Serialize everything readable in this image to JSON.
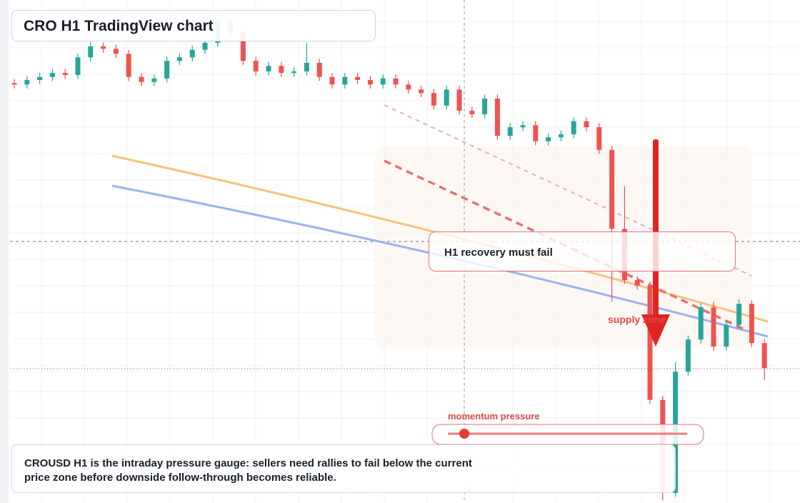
{
  "chart_data": {
    "type": "candlestick",
    "title": "CRO H1 TradingView chart",
    "ylim": [
      0,
      100
    ],
    "open": [
      83.5,
      83.2,
      84.1,
      84.7,
      85.5,
      85.1,
      88.6,
      90.8,
      90.3,
      89.3,
      84.7,
      83.7,
      84.4,
      87.9,
      88.6,
      90.1,
      91.5,
      95.7,
      93.6,
      87.9,
      85.8,
      86.9,
      85.5,
      85.8,
      87.5,
      84.7,
      83.2,
      84.7,
      84.1,
      83.2,
      84.4,
      83.2,
      82.2,
      81.5,
      79.0,
      82.2,
      78.0,
      77.3,
      80.4,
      73.0,
      74.7,
      75.1,
      71.9,
      72.7,
      73.3,
      75.9,
      74.7,
      70.2,
      54.5,
      44.3,
      43.2,
      20.5,
      2.0,
      26.1,
      32.5,
      38.9,
      31.1,
      35.4,
      39.6,
      31.8
    ],
    "high": [
      84.3,
      84.9,
      85.5,
      86.3,
      86.3,
      89.4,
      91.6,
      91.6,
      91.1,
      90.1,
      85.5,
      85.2,
      88.7,
      89.4,
      90.9,
      92.3,
      98.0,
      96.5,
      94.4,
      88.7,
      87.7,
      87.7,
      86.6,
      91.5,
      88.3,
      85.5,
      85.5,
      85.5,
      84.9,
      85.2,
      85.2,
      84.0,
      83.0,
      82.3,
      83.0,
      83.0,
      78.8,
      81.2,
      81.2,
      75.5,
      75.9,
      75.9,
      73.5,
      74.1,
      76.7,
      76.7,
      75.5,
      71.0,
      63.0,
      45.1,
      44.0,
      21.3,
      28.0,
      33.3,
      39.7,
      40.0,
      36.2,
      40.5,
      40.3,
      32.6
    ],
    "low": [
      82.4,
      82.4,
      83.3,
      83.9,
      84.3,
      84.3,
      87.8,
      89.5,
      88.5,
      83.9,
      82.9,
      82.9,
      83.6,
      87.1,
      87.8,
      89.3,
      90.7,
      92.8,
      87.1,
      85.0,
      85.0,
      84.7,
      84.7,
      85.0,
      83.9,
      82.4,
      82.4,
      83.3,
      82.4,
      82.4,
      82.4,
      81.4,
      80.7,
      78.2,
      78.2,
      77.2,
      76.5,
      76.5,
      72.2,
      72.2,
      73.9,
      71.1,
      71.1,
      71.9,
      72.5,
      73.9,
      69.4,
      40.0,
      43.5,
      42.4,
      19.7,
      0.5,
      1.2,
      25.3,
      31.7,
      30.3,
      30.3,
      34.6,
      31.0,
      24.5
    ],
    "close": [
      83.2,
      84.1,
      84.7,
      85.5,
      85.1,
      88.6,
      90.8,
      90.3,
      89.3,
      84.7,
      83.7,
      84.4,
      87.9,
      88.6,
      90.1,
      91.5,
      95.7,
      93.6,
      87.9,
      85.8,
      86.9,
      85.5,
      85.8,
      87.5,
      84.7,
      83.2,
      84.7,
      84.1,
      83.2,
      84.4,
      83.2,
      82.2,
      81.5,
      79.0,
      82.2,
      78.0,
      77.3,
      80.4,
      73.0,
      74.7,
      75.1,
      71.9,
      72.7,
      73.3,
      75.9,
      74.7,
      70.2,
      54.5,
      44.3,
      43.2,
      20.5,
      2.0,
      26.1,
      32.5,
      38.9,
      31.1,
      35.4,
      39.6,
      31.8,
      26.8
    ],
    "up_color": "#26a69a",
    "down_color": "#ef5350",
    "annotations": {
      "zone_label": "H1 recovery must fail",
      "supply_label": "supply zone",
      "gauge_label": "momentum pressure",
      "caption": "CROUSD H1 is the intraday pressure gauge: sellers need rallies to fail below the current price zone before downside follow-through becomes reliable."
    }
  }
}
